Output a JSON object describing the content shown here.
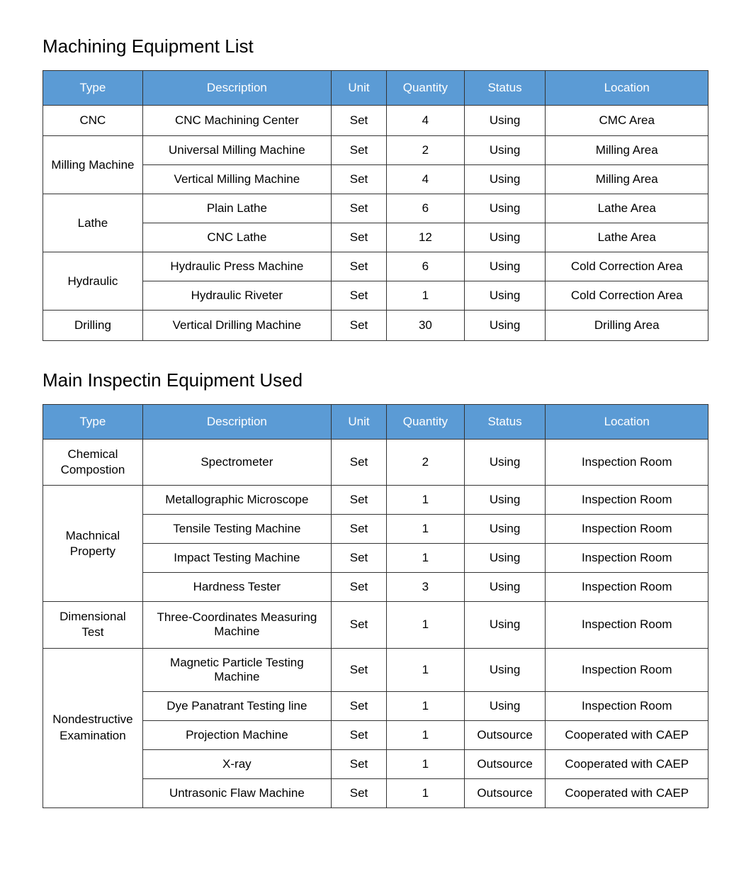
{
  "styling": {
    "header_bg": "#5b9bd5",
    "header_text_color": "#ffffff",
    "border_color": "#333333",
    "body_bg": "#ffffff",
    "title_fontsize": 26,
    "header_fontsize": 17,
    "cell_fontsize": 17
  },
  "columns": [
    "Type",
    "Description",
    "Unit",
    "Quantity",
    "Status",
    "Location"
  ],
  "tables": [
    {
      "title": "Machining Equipment List",
      "groups": [
        {
          "type": "CNC",
          "rows": [
            {
              "description": "CNC Machining Center",
              "unit": "Set",
              "quantity": "4",
              "status": "Using",
              "location": "CMC Area"
            }
          ]
        },
        {
          "type": "Milling Machine",
          "rows": [
            {
              "description": "Universal Milling Machine",
              "unit": "Set",
              "quantity": "2",
              "status": "Using",
              "location": "Milling Area"
            },
            {
              "description": "Vertical Milling Machine",
              "unit": "Set",
              "quantity": "4",
              "status": "Using",
              "location": "Milling Area"
            }
          ]
        },
        {
          "type": "Lathe",
          "rows": [
            {
              "description": "Plain Lathe",
              "unit": "Set",
              "quantity": "6",
              "status": "Using",
              "location": "Lathe Area"
            },
            {
              "description": "CNC Lathe",
              "unit": "Set",
              "quantity": "12",
              "status": "Using",
              "location": "Lathe Area"
            }
          ]
        },
        {
          "type": "Hydraulic",
          "rows": [
            {
              "description": "Hydraulic Press Machine",
              "unit": "Set",
              "quantity": "6",
              "status": "Using",
              "location": "Cold Correction Area"
            },
            {
              "description": "Hydraulic Riveter",
              "unit": "Set",
              "quantity": "1",
              "status": "Using",
              "location": "Cold Correction Area"
            }
          ]
        },
        {
          "type": "Drilling",
          "rows": [
            {
              "description": "Vertical Drilling Machine",
              "unit": "Set",
              "quantity": "30",
              "status": "Using",
              "location": "Drilling Area"
            }
          ]
        }
      ]
    },
    {
      "title": "Main Inspectin Equipment Used",
      "groups": [
        {
          "type": "Chemical Compostion",
          "rows": [
            {
              "description": "Spectrometer",
              "unit": "Set",
              "quantity": "2",
              "status": "Using",
              "location": "Inspection Room"
            }
          ]
        },
        {
          "type": "Machnical Property",
          "rows": [
            {
              "description": "Metallographic Microscope",
              "unit": "Set",
              "quantity": "1",
              "status": "Using",
              "location": "Inspection Room"
            },
            {
              "description": "Tensile Testing Machine",
              "unit": "Set",
              "quantity": "1",
              "status": "Using",
              "location": "Inspection Room"
            },
            {
              "description": "Impact Testing Machine",
              "unit": "Set",
              "quantity": "1",
              "status": "Using",
              "location": "Inspection Room"
            },
            {
              "description": "Hardness Tester",
              "unit": "Set",
              "quantity": "3",
              "status": "Using",
              "location": "Inspection Room"
            }
          ]
        },
        {
          "type": "Dimensional Test",
          "rows": [
            {
              "description": "Three-Coordinates Measuring Machine",
              "unit": "Set",
              "quantity": "1",
              "status": "Using",
              "location": "Inspection Room"
            }
          ]
        },
        {
          "type": "Nondestructive Examination",
          "rows": [
            {
              "description": "Magnetic Particle Testing Machine",
              "unit": "Set",
              "quantity": "1",
              "status": "Using",
              "location": "Inspection Room"
            },
            {
              "description": "Dye Panatrant Testing line",
              "unit": "Set",
              "quantity": "1",
              "status": "Using",
              "location": "Inspection Room"
            },
            {
              "description": "Projection Machine",
              "unit": "Set",
              "quantity": "1",
              "status": "Outsource",
              "location": "Cooperated with CAEP"
            },
            {
              "description": "X-ray",
              "unit": "Set",
              "quantity": "1",
              "status": "Outsource",
              "location": "Cooperated with CAEP"
            },
            {
              "description": "Untrasonic Flaw Machine",
              "unit": "Set",
              "quantity": "1",
              "status": "Outsource",
              "location": "Cooperated with CAEP"
            }
          ]
        }
      ]
    }
  ]
}
